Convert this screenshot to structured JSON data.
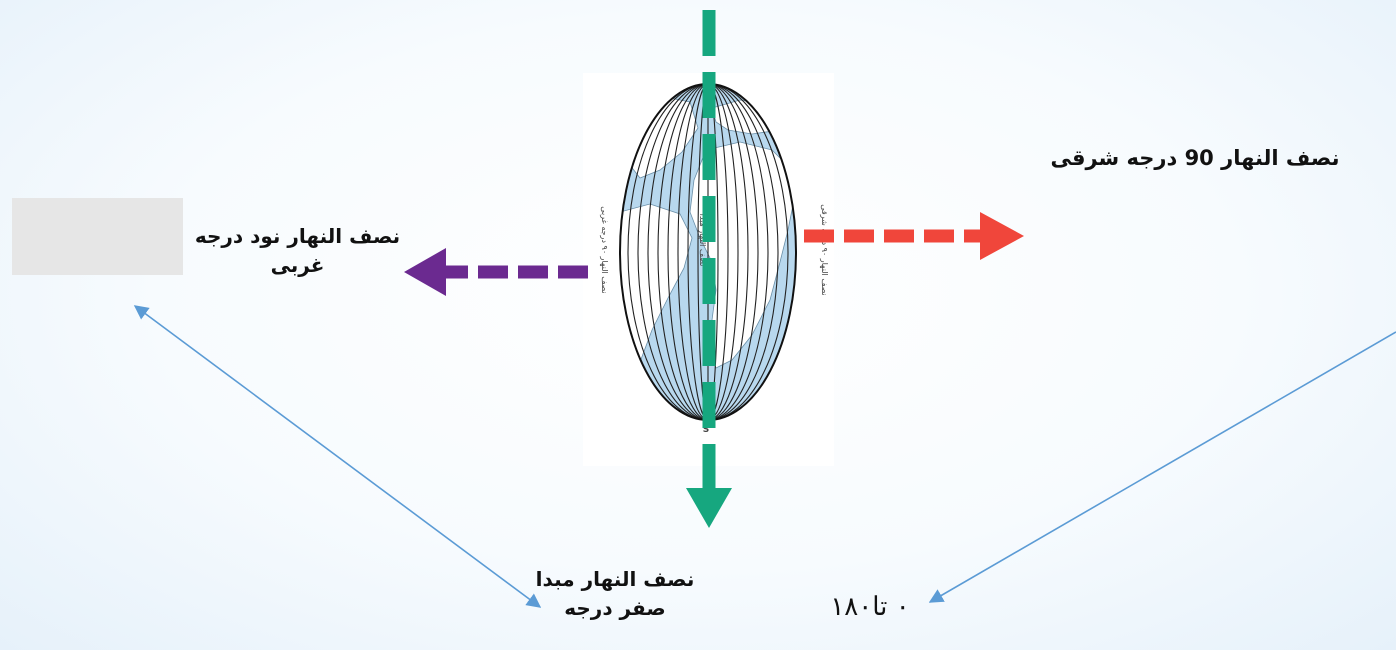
{
  "labels": {
    "east": "نصف النهار 90 درجه شرقی",
    "west_line1": "نصف النهار نود درجه",
    "west_line2": "غربی",
    "prime_line1": "نصف النهار مبدا",
    "prime_line2": "صفر درجه",
    "range": "۰ تا۱۸۰"
  },
  "globe": {
    "left_text": "نصف النهار ۹۰ درجه غربی",
    "center_text": "نصف النهار مبدا",
    "right_text": "نصف النهار ۹۰ درجه شرقی",
    "south_letter": "S"
  },
  "colors": {
    "prime_meridian": "#16a77f",
    "east_arrow": "#f0463b",
    "west_arrow": "#6b2a90",
    "connector": "#5b9bd5",
    "answer_box": "#e6e6e6",
    "ocean": "#b8d8ee",
    "land": "#ffffff"
  }
}
